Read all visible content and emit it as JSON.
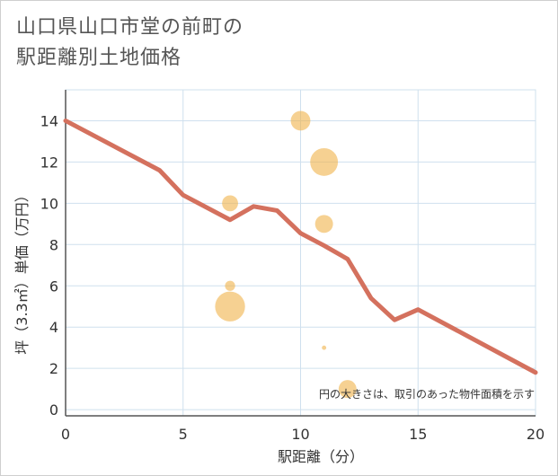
{
  "chart_data": {
    "type": "line+scatter",
    "title_line1": "山口県山口市堂の前町の",
    "title_line2": "駅距離別土地価格",
    "xlabel": "駅距離（分）",
    "ylabel": "坪（3.3㎡）単価（万円）",
    "xlim": [
      0,
      20
    ],
    "ylim": [
      -0.3,
      15.5
    ],
    "x_ticks": [
      0,
      5,
      10,
      15,
      20
    ],
    "y_ticks": [
      0,
      2,
      4,
      6,
      8,
      10,
      12,
      14
    ],
    "note": "円の大きさは、取引のあった物件面積を示す",
    "colors": {
      "line": "#d4715e",
      "bubble": "#f0b24a",
      "grid": "#cfe0ee",
      "axis": "#555555"
    },
    "line_series": {
      "name": "trend",
      "x": [
        0,
        4,
        5,
        7,
        8,
        9,
        10,
        11,
        12,
        13,
        14,
        15,
        20
      ],
      "y": [
        14.0,
        11.6,
        10.4,
        9.2,
        9.85,
        9.65,
        8.55,
        7.95,
        7.3,
        5.4,
        4.35,
        4.85,
        1.8
      ]
    },
    "scatter_series": {
      "name": "transactions",
      "points": [
        {
          "x": 10,
          "y": 14.0,
          "size": 3
        },
        {
          "x": 11,
          "y": 12.0,
          "size": 6
        },
        {
          "x": 7,
          "y": 10.0,
          "size": 2
        },
        {
          "x": 11,
          "y": 9.0,
          "size": 2.5
        },
        {
          "x": 7,
          "y": 6.0,
          "size": 0.8
        },
        {
          "x": 7,
          "y": 5.0,
          "size": 7
        },
        {
          "x": 11,
          "y": 3.0,
          "size": 0.15
        },
        {
          "x": 12,
          "y": 1.0,
          "size": 2.5
        }
      ]
    }
  }
}
